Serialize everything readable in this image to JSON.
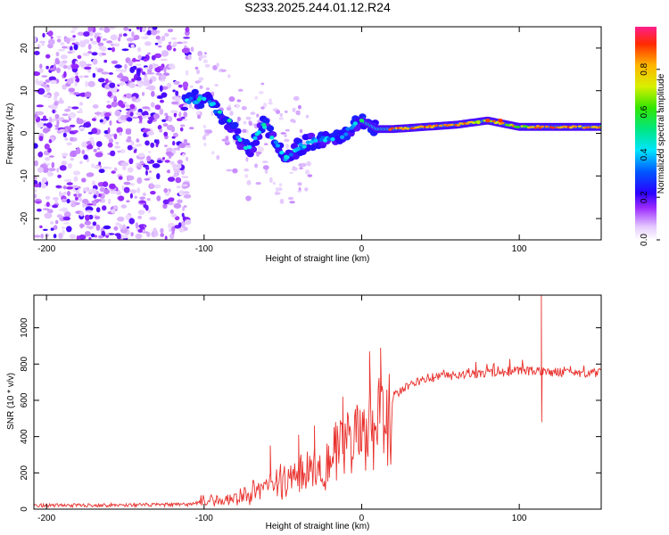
{
  "title": "S233.2025.244.01.12.R24",
  "colors": {
    "snr_line": "#e8302c",
    "axis": "#000000",
    "background": "#ffffff"
  },
  "chart_data": [
    {
      "type": "heatmap",
      "xlabel": "Height of straight line (km)",
      "ylabel": "Frequency (Hz)",
      "xlim": [
        -208,
        152
      ],
      "ylim": [
        -25,
        25
      ],
      "xticks": [
        -200,
        -100,
        0,
        100
      ],
      "yticks": [
        -20,
        -10,
        0,
        10,
        20
      ],
      "colorbar": {
        "label": "Normalized spectral amplitude",
        "range": [
          0,
          1
        ],
        "ticks": [
          0.0,
          0.2,
          0.4,
          0.6,
          0.8
        ]
      },
      "ridge": [
        {
          "x": -110,
          "f": 8
        },
        {
          "x": -100,
          "f": 8
        },
        {
          "x": -90,
          "f": 5
        },
        {
          "x": -80,
          "f": 0
        },
        {
          "x": -72,
          "f": -4
        },
        {
          "x": -62,
          "f": 2
        },
        {
          "x": -56,
          "f": -1
        },
        {
          "x": -48,
          "f": -6
        },
        {
          "x": -40,
          "f": -3
        },
        {
          "x": -30,
          "f": -2
        },
        {
          "x": -20,
          "f": -1
        },
        {
          "x": -10,
          "f": 0
        },
        {
          "x": 0,
          "f": 3
        },
        {
          "x": 10,
          "f": 1
        },
        {
          "x": 20,
          "f": 1
        },
        {
          "x": 40,
          "f": 1.5
        },
        {
          "x": 60,
          "f": 2
        },
        {
          "x": 80,
          "f": 3
        },
        {
          "x": 100,
          "f": 1.5
        },
        {
          "x": 110,
          "f": 1.5
        },
        {
          "x": 150,
          "f": 1.5
        }
      ]
    },
    {
      "type": "line",
      "xlabel": "Height of straight line (km)",
      "ylabel": "SNR (10 * v/v)",
      "xlim": [
        -208,
        152
      ],
      "ylim": [
        0,
        1180
      ],
      "xticks": [
        -200,
        -100,
        0,
        100
      ],
      "yticks": [
        0,
        200,
        400,
        600,
        800,
        1000
      ],
      "series": [
        {
          "name": "SNR",
          "envelope": [
            {
              "x": -208,
              "y": 20
            },
            {
              "x": -110,
              "y": 25
            },
            {
              "x": -100,
              "y": 50
            },
            {
              "x": -80,
              "y": 70
            },
            {
              "x": -60,
              "y": 150
            },
            {
              "x": -40,
              "y": 230
            },
            {
              "x": -20,
              "y": 350
            },
            {
              "x": 0,
              "y": 480
            },
            {
              "x": 10,
              "y": 560
            },
            {
              "x": 20,
              "y": 620
            },
            {
              "x": 30,
              "y": 680
            },
            {
              "x": 40,
              "y": 720
            },
            {
              "x": 60,
              "y": 740
            },
            {
              "x": 100,
              "y": 760
            },
            {
              "x": 152,
              "y": 750
            }
          ],
          "peaks": [
            {
              "x": -58,
              "y": 350
            },
            {
              "x": -40,
              "y": 410
            },
            {
              "x": -30,
              "y": 460
            },
            {
              "x": -12,
              "y": 620
            },
            {
              "x": 5,
              "y": 870
            },
            {
              "x": 12,
              "y": 890
            },
            {
              "x": 114,
              "y": 1180
            },
            {
              "x": 114,
              "y": 480
            }
          ]
        }
      ]
    }
  ]
}
